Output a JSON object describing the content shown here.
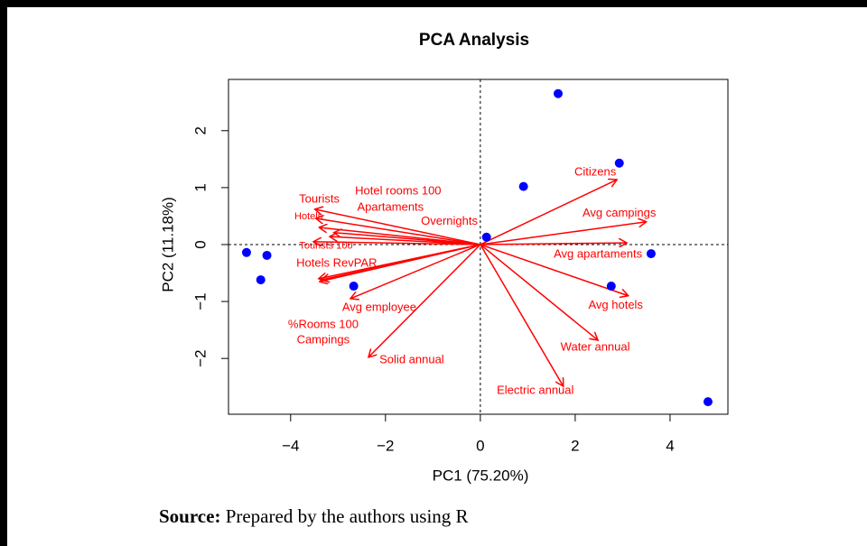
{
  "chart_data": {
    "type": "biplot",
    "title": "PCA Analysis",
    "x_label": "PC1 (75.20%)",
    "y_label": "PC2 (11.18%)",
    "x": [
      -4.93,
      -4.5,
      -4.63,
      -2.67,
      1.64,
      2.93,
      0.91,
      0.13,
      3.6,
      2.76,
      4.8
    ],
    "values": [
      -0.14,
      -0.19,
      -0.62,
      -0.73,
      2.65,
      1.43,
      1.02,
      0.13,
      -0.16,
      -0.73,
      -2.76
    ],
    "color": "#0000ff",
    "loadings": {
      "color": "#ff0000",
      "names": [
        "Citizens",
        "Avg campings",
        "Avg apartaments",
        "Avg hotels",
        "Water annual",
        "Electric annual",
        "Solid annual",
        "Avg employee",
        "%Rooms 100",
        "Campings",
        "Hotels RevPAR",
        "Tourists 100",
        "Hotels",
        "Tourists",
        "Hotel rooms 100",
        "Apartaments",
        "Overnights"
      ],
      "x": [
        2.88,
        3.5,
        3.09,
        3.12,
        2.48,
        1.75,
        -2.36,
        -2.74,
        -3.35,
        -3.39,
        -3.41,
        -3.52,
        -3.47,
        -3.49,
        -3.18,
        -3.4,
        -3.09
      ],
      "y": [
        1.14,
        0.4,
        0.03,
        -0.9,
        -1.68,
        -2.49,
        -1.98,
        -0.95,
        -0.62,
        -0.65,
        -0.6,
        0.05,
        0.46,
        0.62,
        0.14,
        0.3,
        0.21
      ]
    },
    "xlim": [
      -5.31,
      5.22
    ],
    "ylim": [
      -2.98,
      2.9
    ],
    "xticks": [
      {
        "value": -4,
        "label": "−4"
      },
      {
        "value": -2,
        "label": "−2"
      },
      0,
      2,
      4
    ],
    "yticks": [
      {
        "value": -2,
        "label": "−2"
      },
      {
        "value": -1,
        "label": "−1"
      },
      0,
      1,
      2
    ]
  },
  "caption": {
    "label": "Source:",
    "text": "Prepared by the authors using R"
  }
}
